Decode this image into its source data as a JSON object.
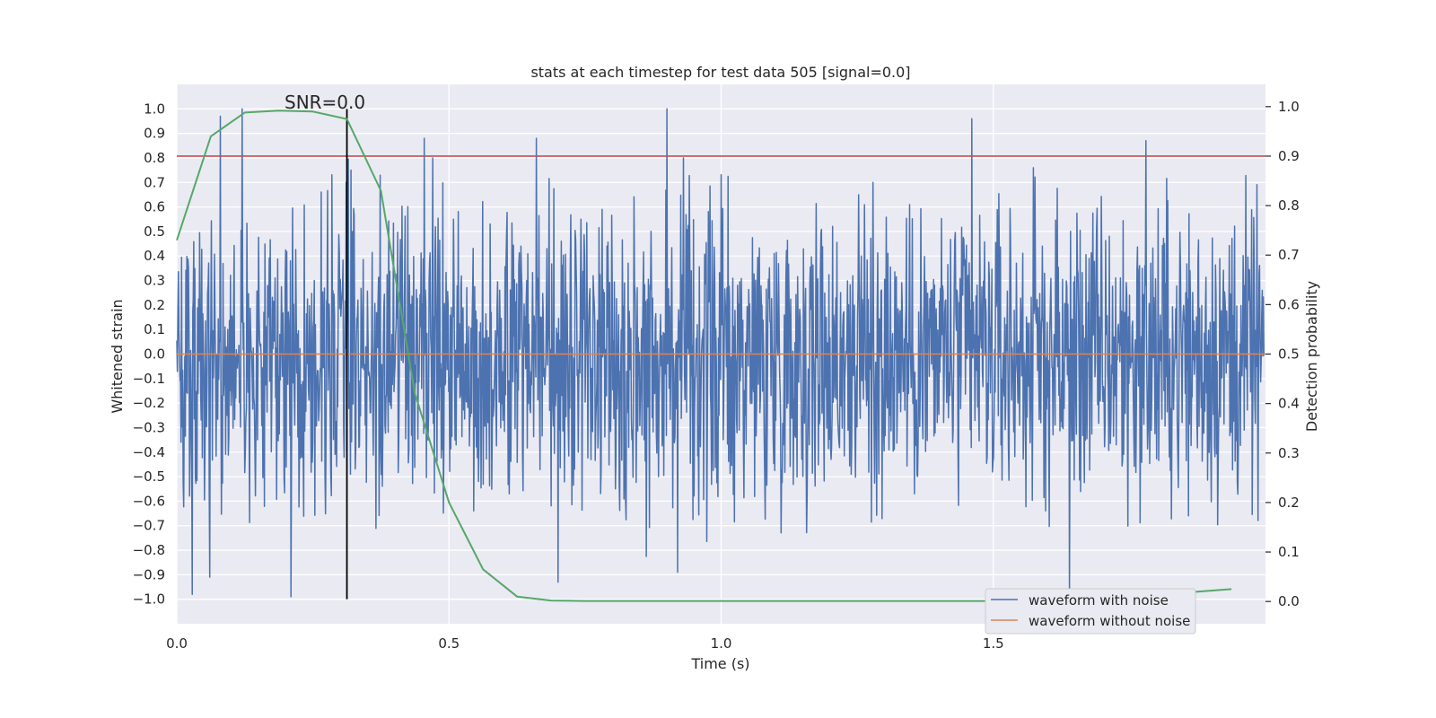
{
  "chart_data": {
    "type": "line",
    "title": "stats at each timestep for test data 505 [signal=0.0]",
    "xlabel": "Time (s)",
    "ylabel": "Whitened strain",
    "y2label": "Detection probability",
    "xlim": [
      0.0,
      2.0
    ],
    "ylim": [
      -1.1,
      1.1
    ],
    "y2lim": [
      -0.045,
      1.045
    ],
    "x_ticks": [
      0.0,
      0.5,
      1.0,
      1.5
    ],
    "x_tick_labels": [
      "0.0",
      "0.5",
      "1.0",
      "1.5"
    ],
    "y_ticks": [
      1.0,
      0.9,
      0.8,
      0.7,
      0.6,
      0.5,
      0.4,
      0.3,
      0.2,
      0.1,
      0.0,
      -0.1,
      -0.2,
      -0.3,
      -0.4,
      -0.5,
      -0.6,
      -0.7,
      -0.8,
      -0.9,
      -1.0
    ],
    "y_tick_labels": [
      "1.0",
      "0.9",
      "0.8",
      "0.7",
      "0.6",
      "0.5",
      "0.4",
      "0.3",
      "0.2",
      "0.1",
      "0.0",
      "−0.1",
      "−0.2",
      "−0.3",
      "−0.4",
      "−0.5",
      "−0.6",
      "−0.7",
      "−0.8",
      "−0.9",
      "−1.0"
    ],
    "y2_ticks": [
      1.0,
      0.9,
      0.8,
      0.7,
      0.6,
      0.5,
      0.4,
      0.3,
      0.2,
      0.1,
      0.0
    ],
    "y2_tick_labels": [
      "1.0",
      "0.9",
      "0.8",
      "0.7",
      "0.6",
      "0.5",
      "0.4",
      "0.3",
      "0.2",
      "0.1",
      "0.0"
    ],
    "grid": true,
    "legend_position": "bottom-right",
    "series": [
      {
        "name": "waveform with noise",
        "color": "#4c72b0",
        "axis": "left",
        "noise_amplitude_approx": 0.3,
        "peak_values": [
          {
            "x": 0.028,
            "y": -0.98
          },
          {
            "x": 0.06,
            "y": -0.91
          },
          {
            "x": 0.08,
            "y": 0.97
          },
          {
            "x": 0.12,
            "y": 1.0
          },
          {
            "x": 0.21,
            "y": -0.99
          },
          {
            "x": 0.32,
            "y": 0.75
          },
          {
            "x": 0.455,
            "y": 0.88
          },
          {
            "x": 0.66,
            "y": 0.88
          },
          {
            "x": 0.7,
            "y": -0.93
          },
          {
            "x": 0.9,
            "y": 1.0
          },
          {
            "x": 0.92,
            "y": -0.89
          },
          {
            "x": 1.46,
            "y": 0.96
          },
          {
            "x": 1.64,
            "y": -1.0
          },
          {
            "x": 1.78,
            "y": 0.87
          }
        ]
      },
      {
        "name": "waveform without noise",
        "color": "#dd8452",
        "axis": "left",
        "x": [
          0.0,
          2.0
        ],
        "y": [
          0.0,
          0.0
        ]
      },
      {
        "name": "",
        "color": "#55a868",
        "axis": "right",
        "x": [
          0.0,
          0.0625,
          0.125,
          0.1875,
          0.25,
          0.3125,
          0.375,
          0.4375,
          0.5,
          0.5625,
          0.625,
          0.6875,
          0.75,
          0.8125,
          0.875,
          0.9375,
          1.0,
          1.0625,
          1.125,
          1.1875,
          1.25,
          1.3125,
          1.375,
          1.4375,
          1.5,
          1.5625,
          1.625,
          1.6875,
          1.75,
          1.8125,
          1.875,
          1.9375
        ],
        "y": [
          0.73,
          0.94,
          0.988,
          0.992,
          0.99,
          0.975,
          0.83,
          0.42,
          0.2,
          0.065,
          0.01,
          0.002,
          0.001,
          0.001,
          0.001,
          0.001,
          0.001,
          0.001,
          0.001,
          0.001,
          0.001,
          0.001,
          0.001,
          0.001,
          0.001,
          0.001,
          0.003,
          0.006,
          0.01,
          0.015,
          0.02,
          0.025
        ]
      }
    ],
    "reference_lines": [
      {
        "orientation": "horizontal",
        "axis": "right",
        "value": 0.9,
        "color": "#c44e52"
      },
      {
        "orientation": "vertical",
        "x": 0.3125,
        "y_from": -1.0,
        "y_to": 1.0,
        "color": "#000000"
      }
    ],
    "annotations": [
      {
        "text": "SNR=0.0",
        "x": 0.2,
        "y": 1.0
      }
    ]
  }
}
